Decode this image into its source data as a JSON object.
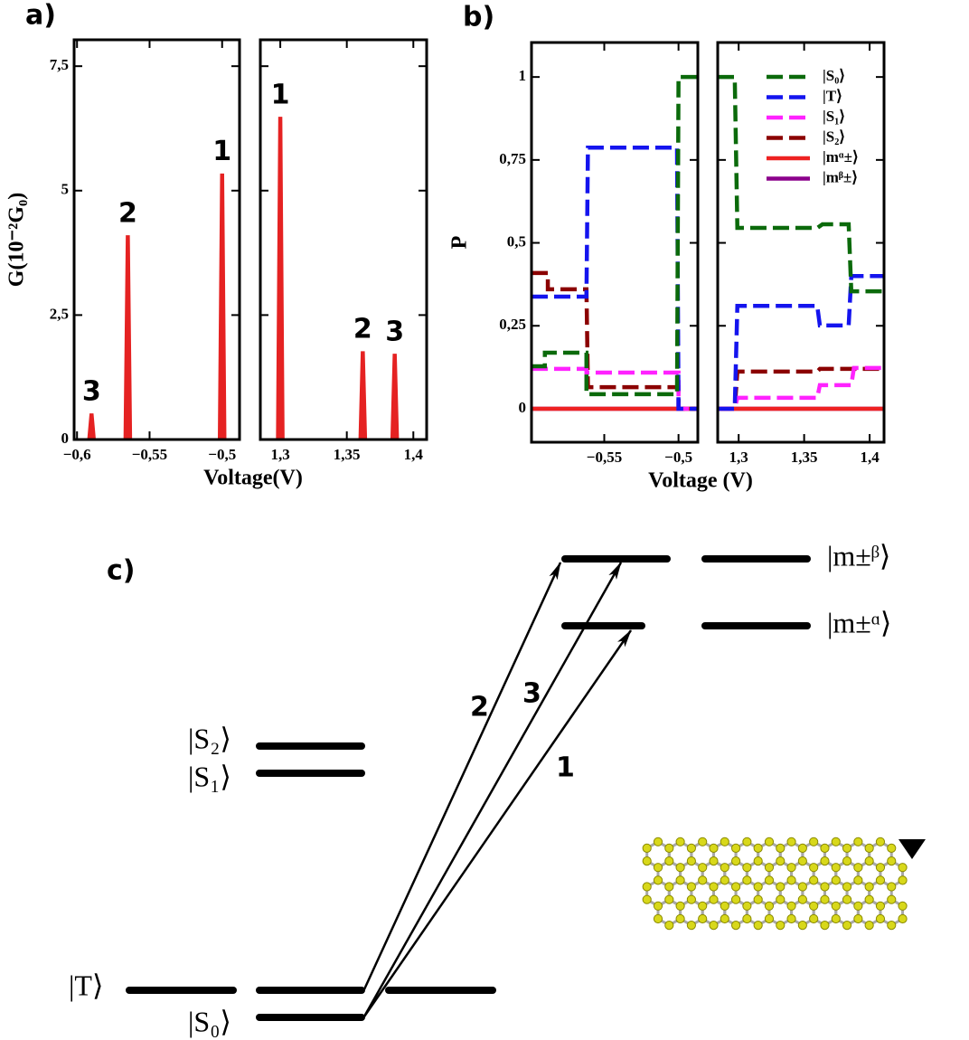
{
  "chart_data": [
    {
      "type": "line",
      "panel": "a)",
      "ylabel": "G(10⁻²G₀)",
      "xlabel": "Voltage(V)",
      "color": "#e52222",
      "ylim": [
        0,
        8.03
      ],
      "yticks": [
        0,
        {
          "value": 2.5,
          "label": "2,5"
        },
        5,
        {
          "value": 7.5,
          "label": "7,5"
        }
      ],
      "axes": [
        {
          "xlim": [
            -0.602,
            -0.488
          ],
          "xticks": [
            {
              "value": -0.6,
              "label": "−0,6"
            },
            {
              "value": -0.55,
              "label": "−0,55"
            },
            {
              "value": -0.5,
              "label": "−0,5"
            }
          ]
        },
        {
          "xlim": [
            1.285,
            1.41
          ],
          "xticks": [
            {
              "value": 1.3,
              "label": "1,3"
            },
            {
              "value": 1.35,
              "label": "1,35"
            },
            {
              "value": 1.4,
              "label": "1,4"
            }
          ]
        }
      ],
      "x": [
        -0.59,
        -0.565,
        -0.5,
        1.3,
        1.362,
        1.386
      ],
      "values": [
        0.51,
        4.09,
        5.33,
        6.47,
        1.76,
        1.71
      ],
      "peak_labels": [
        "3",
        "2",
        "1",
        "1",
        "2",
        "3"
      ]
    },
    {
      "type": "line",
      "panel": "b)",
      "ylabel": "P",
      "xlabel": "Voltage (V)",
      "legend": "upper right",
      "ylim": [
        -0.101,
        1.104
      ],
      "yticks": [
        0,
        {
          "value": 0.25,
          "label": "0,25"
        },
        {
          "value": 0.5,
          "label": "0,5"
        },
        {
          "value": 0.75,
          "label": "0,75"
        },
        1
      ],
      "axes": [
        {
          "xlim": [
            -0.599,
            -0.487
          ],
          "xticks": [
            {
              "value": -0.55,
              "label": "−0,55"
            },
            {
              "value": -0.5,
              "label": "−0,5"
            }
          ]
        },
        {
          "xlim": [
            1.284,
            1.411
          ],
          "xticks": [
            {
              "value": 1.3,
              "label": "1,3"
            },
            {
              "value": 1.35,
              "label": "1,35"
            },
            {
              "value": 1.4,
              "label": "1,4"
            }
          ]
        }
      ],
      "series": [
        {
          "name": "|S₀⟩",
          "color": "#0b6a0b",
          "dashed": true,
          "x": [
            -0.599,
            -0.59,
            -0.59,
            -0.562,
            -0.562,
            -0.501,
            -0.5,
            -0.487,
            null,
            1.284,
            1.297,
            1.299,
            1.36,
            1.364,
            1.384,
            1.386,
            1.411
          ],
          "values": [
            0.128,
            0.128,
            0.169,
            0.169,
            0.044,
            0.044,
            1,
            1,
            null,
            1,
            1,
            0.545,
            0.545,
            0.556,
            0.556,
            0.354,
            0.354
          ]
        },
        {
          "name": "|T⟩",
          "color": "#1414ee",
          "dashed": true,
          "x": [
            -0.599,
            -0.562,
            -0.561,
            -0.501,
            -0.5,
            -0.487,
            null,
            1.284,
            1.297,
            1.299,
            1.36,
            1.362,
            1.384,
            1.386,
            1.411
          ],
          "values": [
            0.338,
            0.338,
            0.787,
            0.787,
            0,
            0,
            null,
            0,
            0,
            0.31,
            0.31,
            0.251,
            0.251,
            0.4,
            0.4
          ]
        },
        {
          "name": "|S₁⟩",
          "color": "#ff22ff",
          "dashed": true,
          "x": [
            -0.599,
            -0.562,
            -0.562,
            -0.5,
            -0.5,
            -0.487,
            null,
            1.284,
            1.297,
            1.299,
            1.36,
            1.362,
            1.386,
            1.388,
            1.411
          ],
          "values": [
            0.12,
            0.12,
            0.109,
            0.109,
            0,
            0,
            null,
            0,
            0,
            0.033,
            0.033,
            0.071,
            0.071,
            0.123,
            0.123
          ]
        },
        {
          "name": "|S₂⟩",
          "color": "#8b0000",
          "dashed": true,
          "x": [
            -0.599,
            -0.588,
            -0.588,
            -0.562,
            -0.561,
            -0.5,
            -0.5,
            -0.487,
            null,
            1.284,
            1.297,
            1.299,
            1.36,
            1.362,
            1.411
          ],
          "values": [
            0.409,
            0.409,
            0.36,
            0.36,
            0.065,
            0.065,
            0,
            0,
            null,
            0,
            0,
            0.112,
            0.112,
            0.12,
            0.12
          ]
        },
        {
          "name": "|mᵅ±⟩",
          "color": "#ee2222",
          "dashed": false,
          "x": [
            -0.599,
            -0.487,
            null,
            1.284,
            1.411
          ],
          "values": [
            0,
            0,
            null,
            0,
            0
          ]
        },
        {
          "name": "|mᵝ±⟩",
          "color": "#8b008b",
          "dashed": false,
          "x": [
            -0.599,
            -0.487,
            null,
            1.284,
            1.411
          ],
          "values": [
            0,
            0,
            null,
            0,
            0
          ]
        }
      ]
    }
  ],
  "diagram": {
    "label": "c)",
    "states": [
      "|m±ᵝ⟩",
      "|m±ᵅ⟩",
      "|S₂⟩",
      "|S₁⟩",
      "|T⟩",
      "|S₀⟩"
    ],
    "transitions": [
      "2",
      "3",
      "1"
    ]
  }
}
